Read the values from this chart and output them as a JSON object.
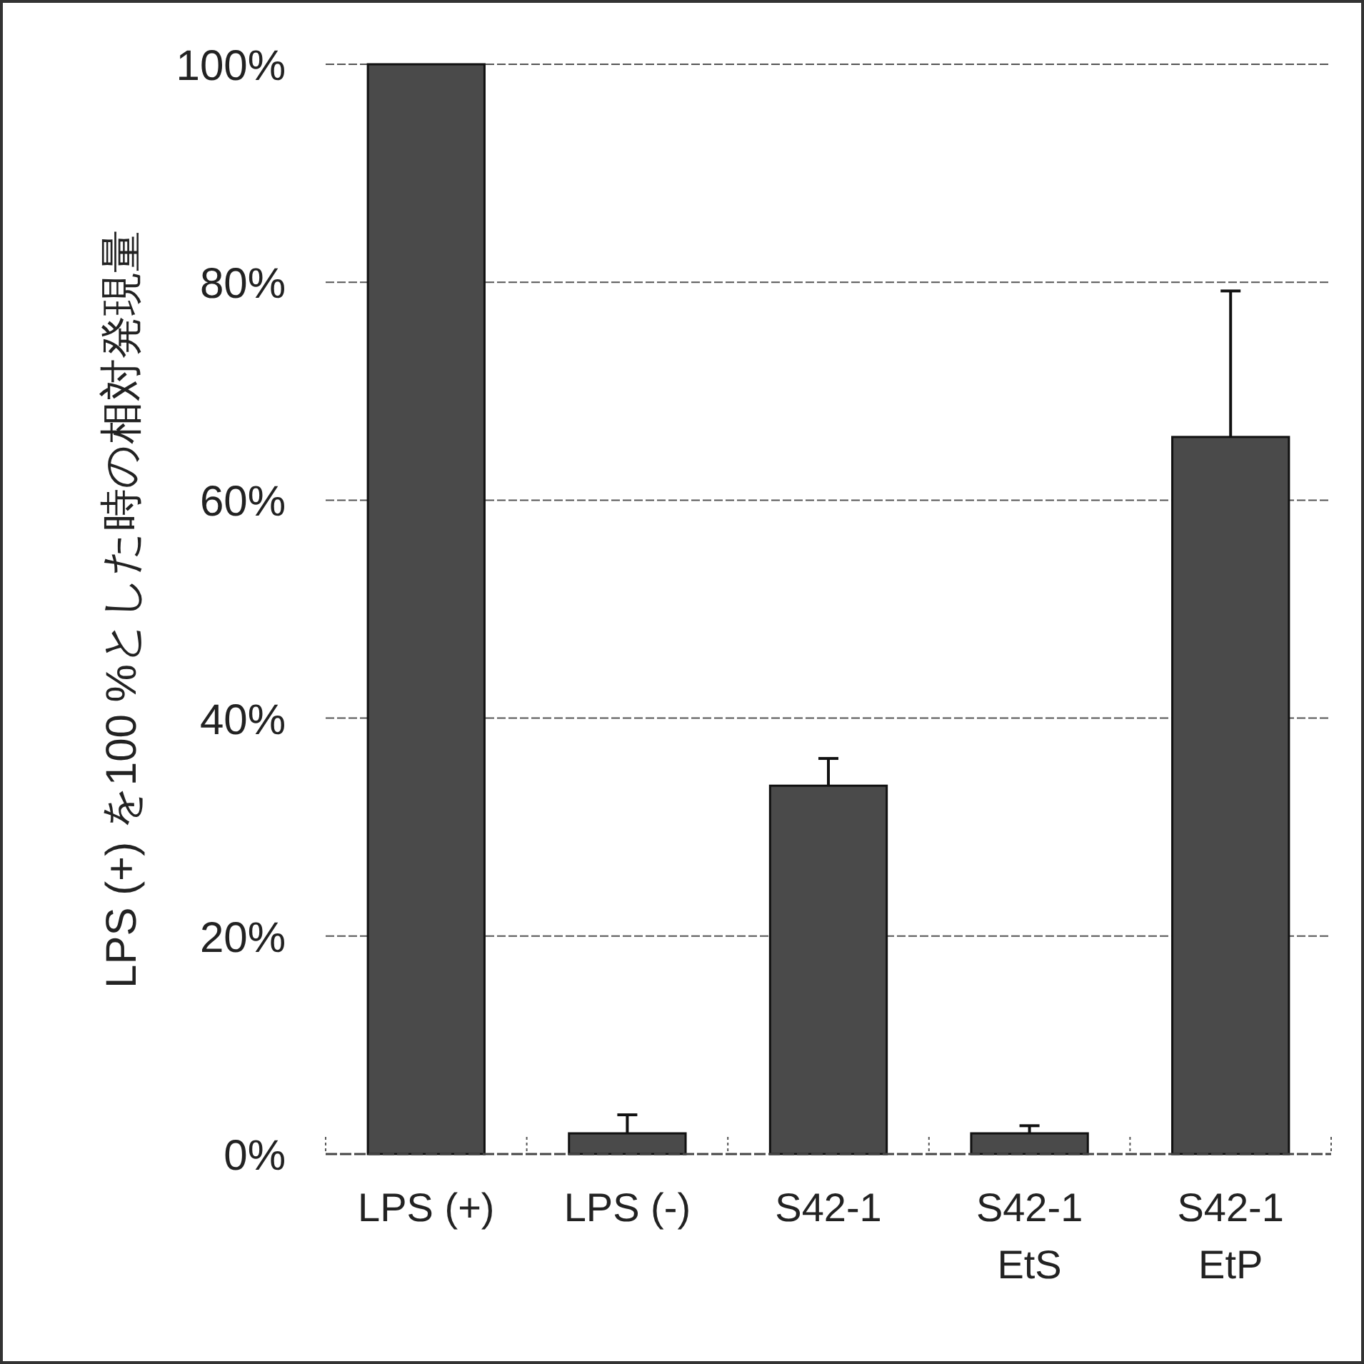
{
  "chart_data": {
    "type": "bar",
    "ylabel": "LPS (+) を100 %とした時の相対発現量",
    "categories": [
      "LPS (+)",
      "LPS (-)",
      "S42-1",
      "S42-1\nEtS",
      "S42-1\nEtP"
    ],
    "values": [
      100,
      1.9,
      33.8,
      1.9,
      65.8
    ],
    "errors": [
      null,
      [
        1.9,
        3.6
      ],
      [
        33.8,
        36.3
      ],
      [
        1.9,
        2.6
      ],
      [
        65.8,
        79.2
      ]
    ],
    "color": "#4a4a4a",
    "ylim": [
      0,
      100
    ],
    "yticks": [
      {
        "value": 0,
        "label": "0%"
      },
      {
        "value": 20,
        "label": "20%"
      },
      {
        "value": 40,
        "label": "40%"
      },
      {
        "value": 60,
        "label": "60%"
      },
      {
        "value": 80,
        "label": "80%"
      },
      {
        "value": 100,
        "label": "100%"
      }
    ],
    "grid": "y"
  }
}
